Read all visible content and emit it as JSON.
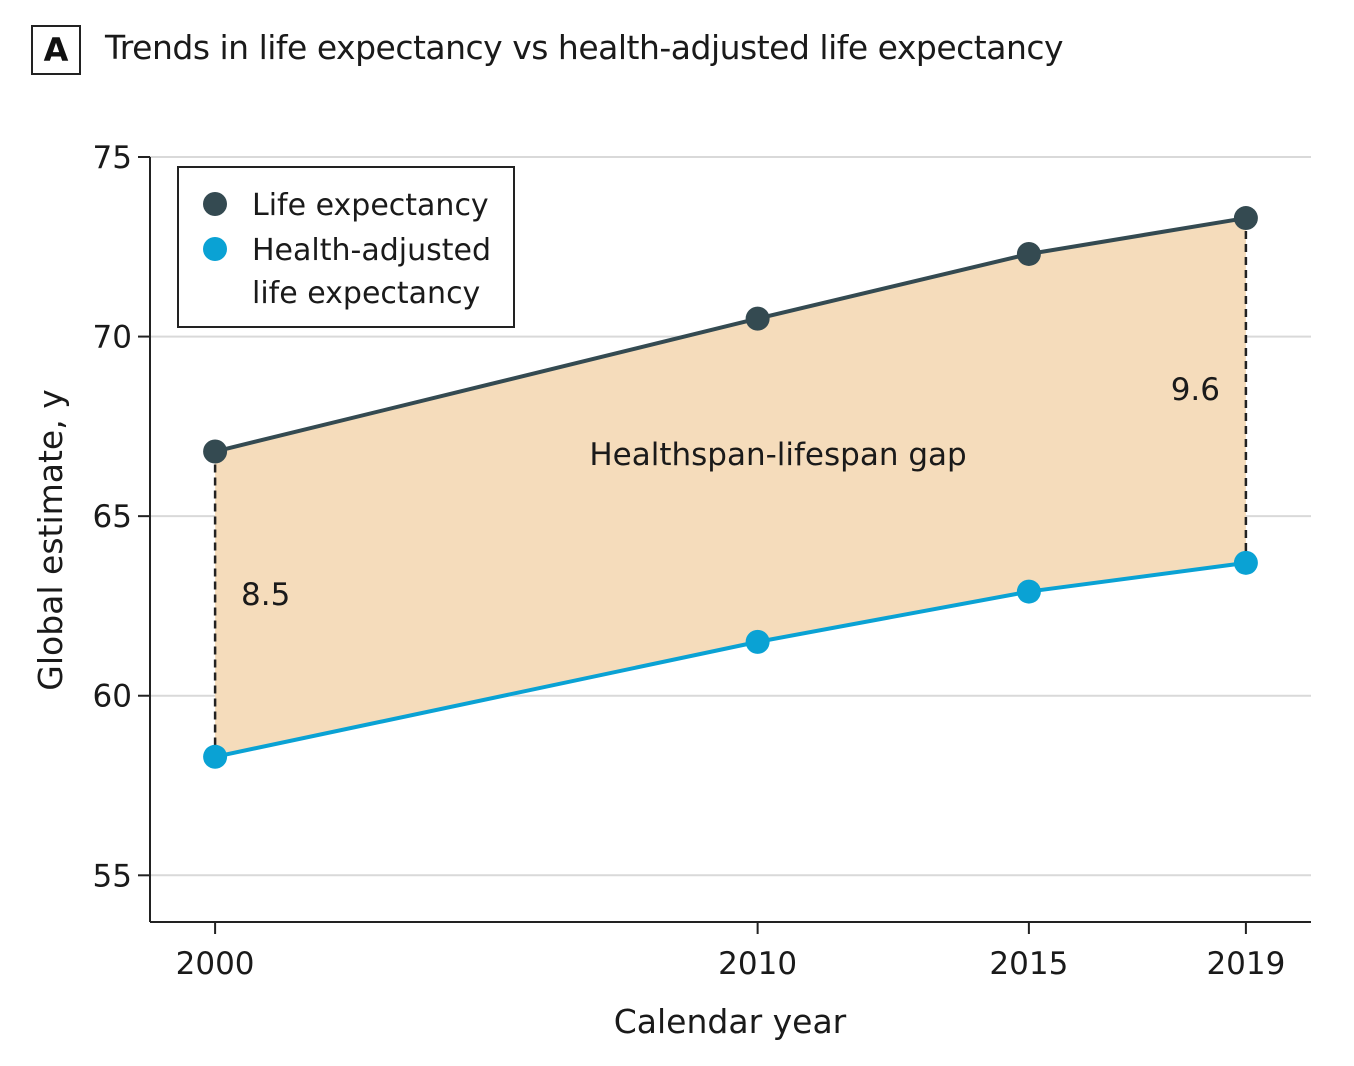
{
  "panel_label": "A",
  "title": "Trends in life expectancy vs health-adjusted life expectancy",
  "chart_data": {
    "type": "line",
    "x": [
      2000,
      2010,
      2015,
      2019
    ],
    "xlabel": "Calendar year",
    "ylabel": "Global estimate, y",
    "xticks": [
      2000,
      2010,
      2015,
      2019
    ],
    "yticks": [
      55,
      60,
      65,
      70,
      75
    ],
    "xlim": [
      1998.8,
      2020.2
    ],
    "ylim": [
      53.7,
      75
    ],
    "grid": "horizontal",
    "legend_placement": "top-left",
    "series": [
      {
        "name": "Life expectancy",
        "values": [
          66.8,
          70.5,
          72.3,
          73.3
        ],
        "color": "#344a51"
      },
      {
        "name": "Health-adjusted life expectancy",
        "legend_lines": [
          "Health-adjusted",
          "life expectancy"
        ],
        "values": [
          58.3,
          61.5,
          62.9,
          63.7
        ],
        "color": "#0aa2d4"
      }
    ],
    "fill_between_color": "#f5dcbb",
    "annotations": {
      "gap_label": "Healthspan-lifespan gap",
      "gap_start": "8.5",
      "gap_end": "9.6"
    }
  }
}
